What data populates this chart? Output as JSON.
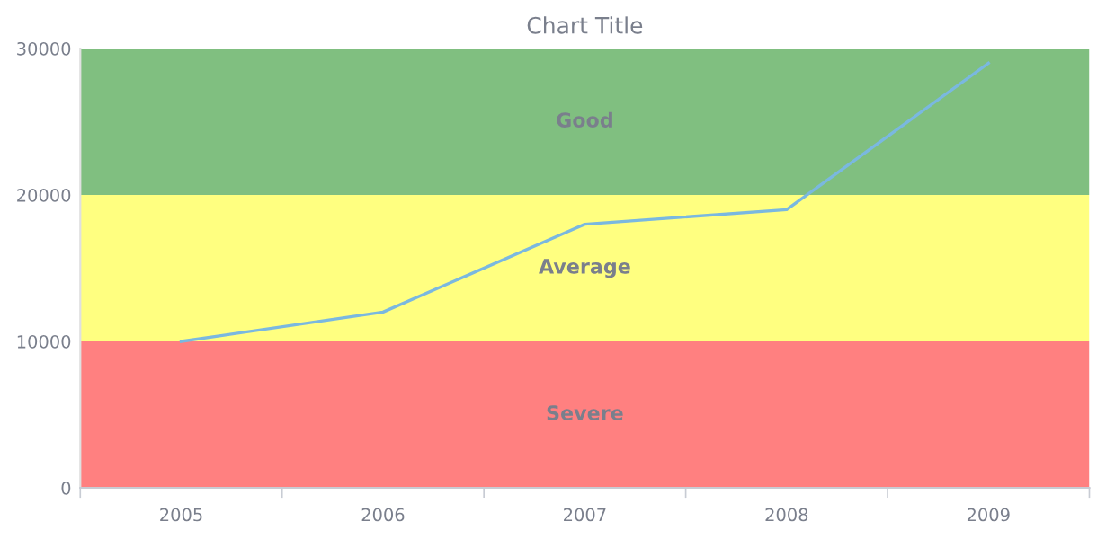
{
  "chart_data": {
    "type": "line",
    "title": "Chart Title",
    "categories": [
      "2005",
      "2006",
      "2007",
      "2008",
      "2009"
    ],
    "series": [
      {
        "color": "#7ab8e0",
        "values": [
          10000,
          12000,
          18000,
          19000,
          29000
        ]
      }
    ],
    "ylim": [
      0,
      30000
    ],
    "yticks": [
      0,
      10000,
      20000,
      30000
    ],
    "grid": false,
    "legend": false,
    "bands": [
      {
        "axis": "y",
        "from": 0,
        "to": 10000,
        "label": "Severe",
        "color": "#ff8080"
      },
      {
        "axis": "y",
        "from": 10000,
        "to": 20000,
        "label": "Average",
        "color": "#ffff80"
      },
      {
        "axis": "y",
        "from": 20000,
        "to": 30000,
        "label": "Good",
        "color": "#80bf80"
      }
    ]
  }
}
